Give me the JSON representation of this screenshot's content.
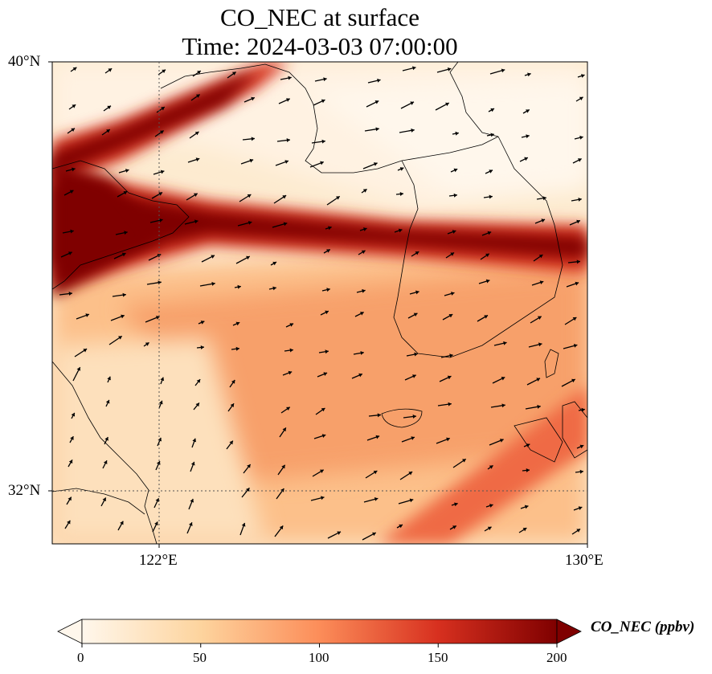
{
  "title_line1": "CO_NEC at surface",
  "title_line2": "Time: 2024-03-03 07:00:00",
  "map": {
    "lon_range": [
      120,
      130
    ],
    "lat_range": [
      31,
      40
    ],
    "x_ticks": [
      "122°E",
      "130°E"
    ],
    "y_ticks": [
      "40°N",
      "32°N"
    ],
    "gridlines": {
      "lon": 122,
      "lat": 32,
      "style": "dotted"
    },
    "colormap": "OrRd",
    "features": [
      "coastlines",
      "wind-vectors"
    ]
  },
  "colorbar": {
    "label": "CO_NEC (ppbv)",
    "ticks": [
      "0",
      "50",
      "100",
      "150",
      "200"
    ],
    "range": [
      0,
      200
    ],
    "extend": "both",
    "colors": [
      "#fff7ec",
      "#fdd49e",
      "#fc8d59",
      "#d7301f",
      "#7f0000"
    ]
  },
  "plumes": [
    {
      "name": "northern-band",
      "peak_ppbv": 200
    },
    {
      "name": "central-band",
      "peak_ppbv": 200
    },
    {
      "name": "southern-band",
      "peak_ppbv": 120
    }
  ]
}
